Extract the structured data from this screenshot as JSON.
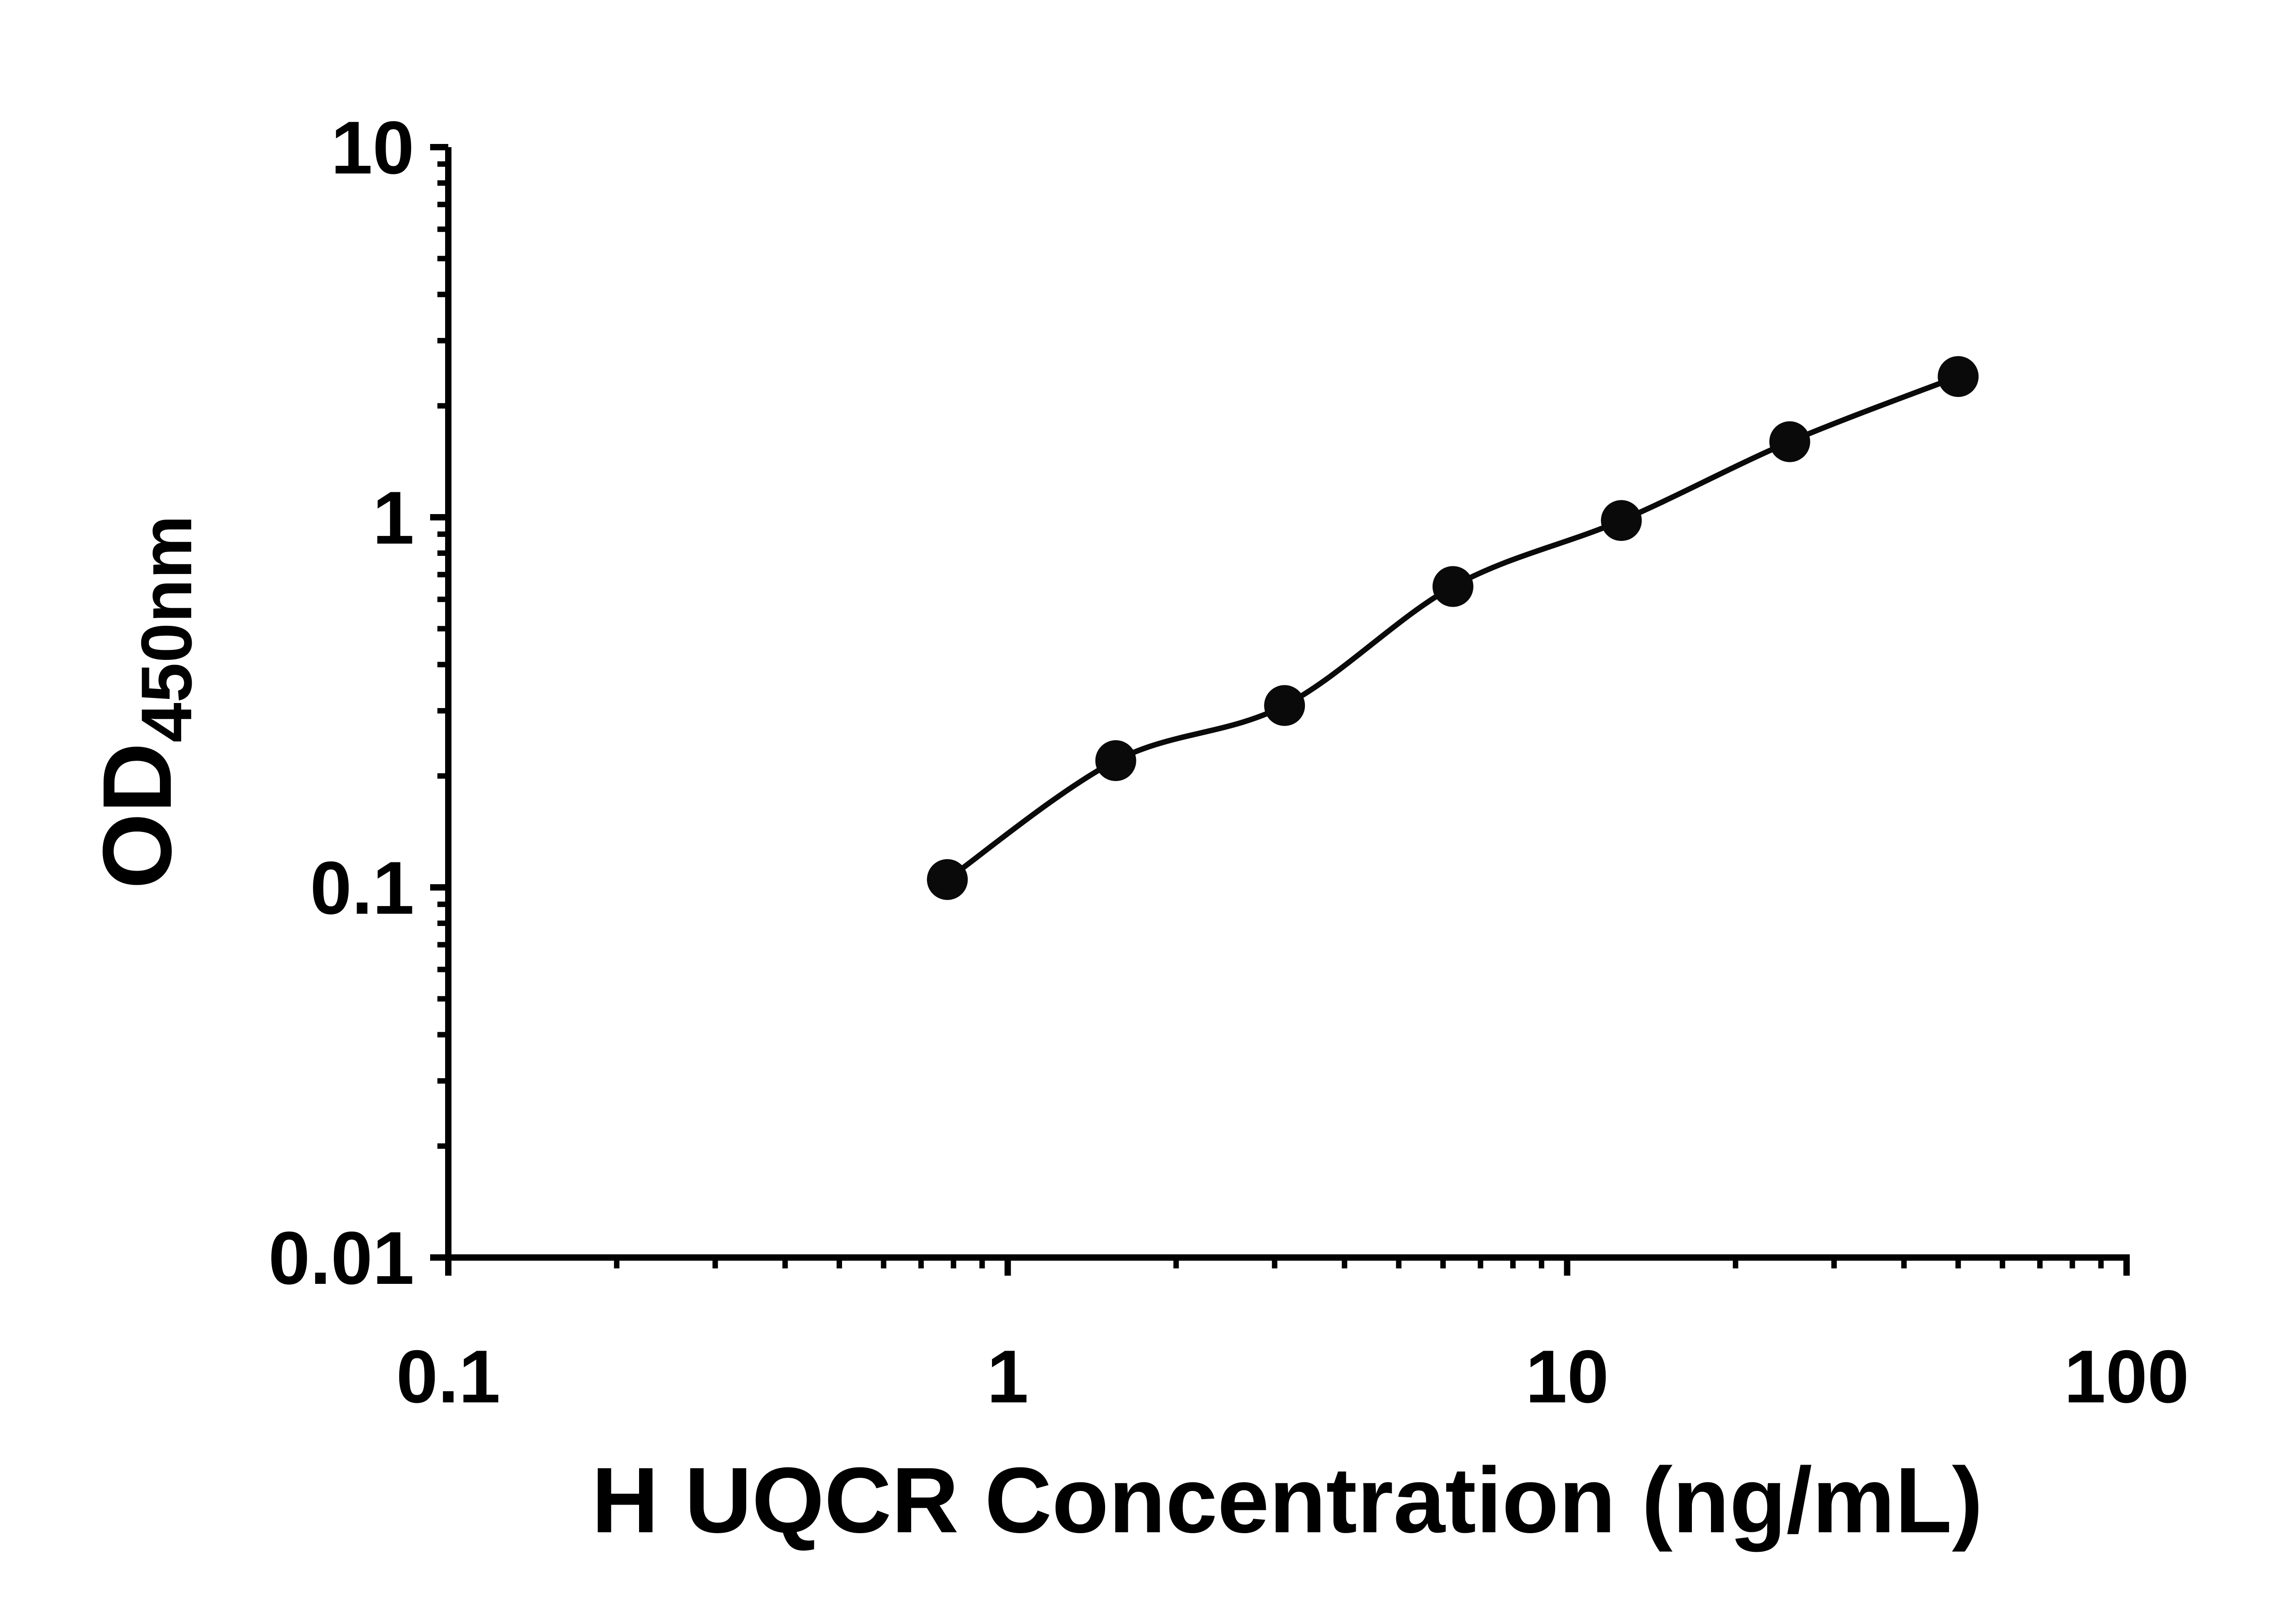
{
  "page": {
    "background": "#ffffff"
  },
  "chart_data": {
    "type": "scatter",
    "title": "",
    "xlabel": "H UQCR Concentration (ng/mL)",
    "ylabel_main": "OD",
    "ylabel_sub": "450nm",
    "x_scale": "log",
    "y_scale": "log",
    "xlim": [
      0.1,
      100
    ],
    "ylim": [
      0.01,
      10
    ],
    "grid": false,
    "legend": "none",
    "minor_ticks": true,
    "axis_color": "#000000",
    "marker_color": "#0a0a0a",
    "line_color": "#0a0a0a",
    "x_ticks": [
      {
        "value": 0.1,
        "label": "0.1"
      },
      {
        "value": 1,
        "label": "1"
      },
      {
        "value": 10,
        "label": "10"
      },
      {
        "value": 100,
        "label": "100"
      }
    ],
    "y_ticks": [
      {
        "value": 0.01,
        "label": "0.01"
      },
      {
        "value": 0.1,
        "label": "0.1"
      },
      {
        "value": 1,
        "label": "1"
      },
      {
        "value": 10,
        "label": "10"
      }
    ],
    "series": [
      {
        "marker": "circle",
        "curve": "smooth",
        "points": [
          {
            "x": 0.78,
            "y": 0.105
          },
          {
            "x": 1.56,
            "y": 0.22
          },
          {
            "x": 3.125,
            "y": 0.31
          },
          {
            "x": 6.25,
            "y": 0.65
          },
          {
            "x": 12.5,
            "y": 0.98
          },
          {
            "x": 25,
            "y": 1.6
          },
          {
            "x": 50,
            "y": 2.4
          }
        ]
      }
    ]
  }
}
